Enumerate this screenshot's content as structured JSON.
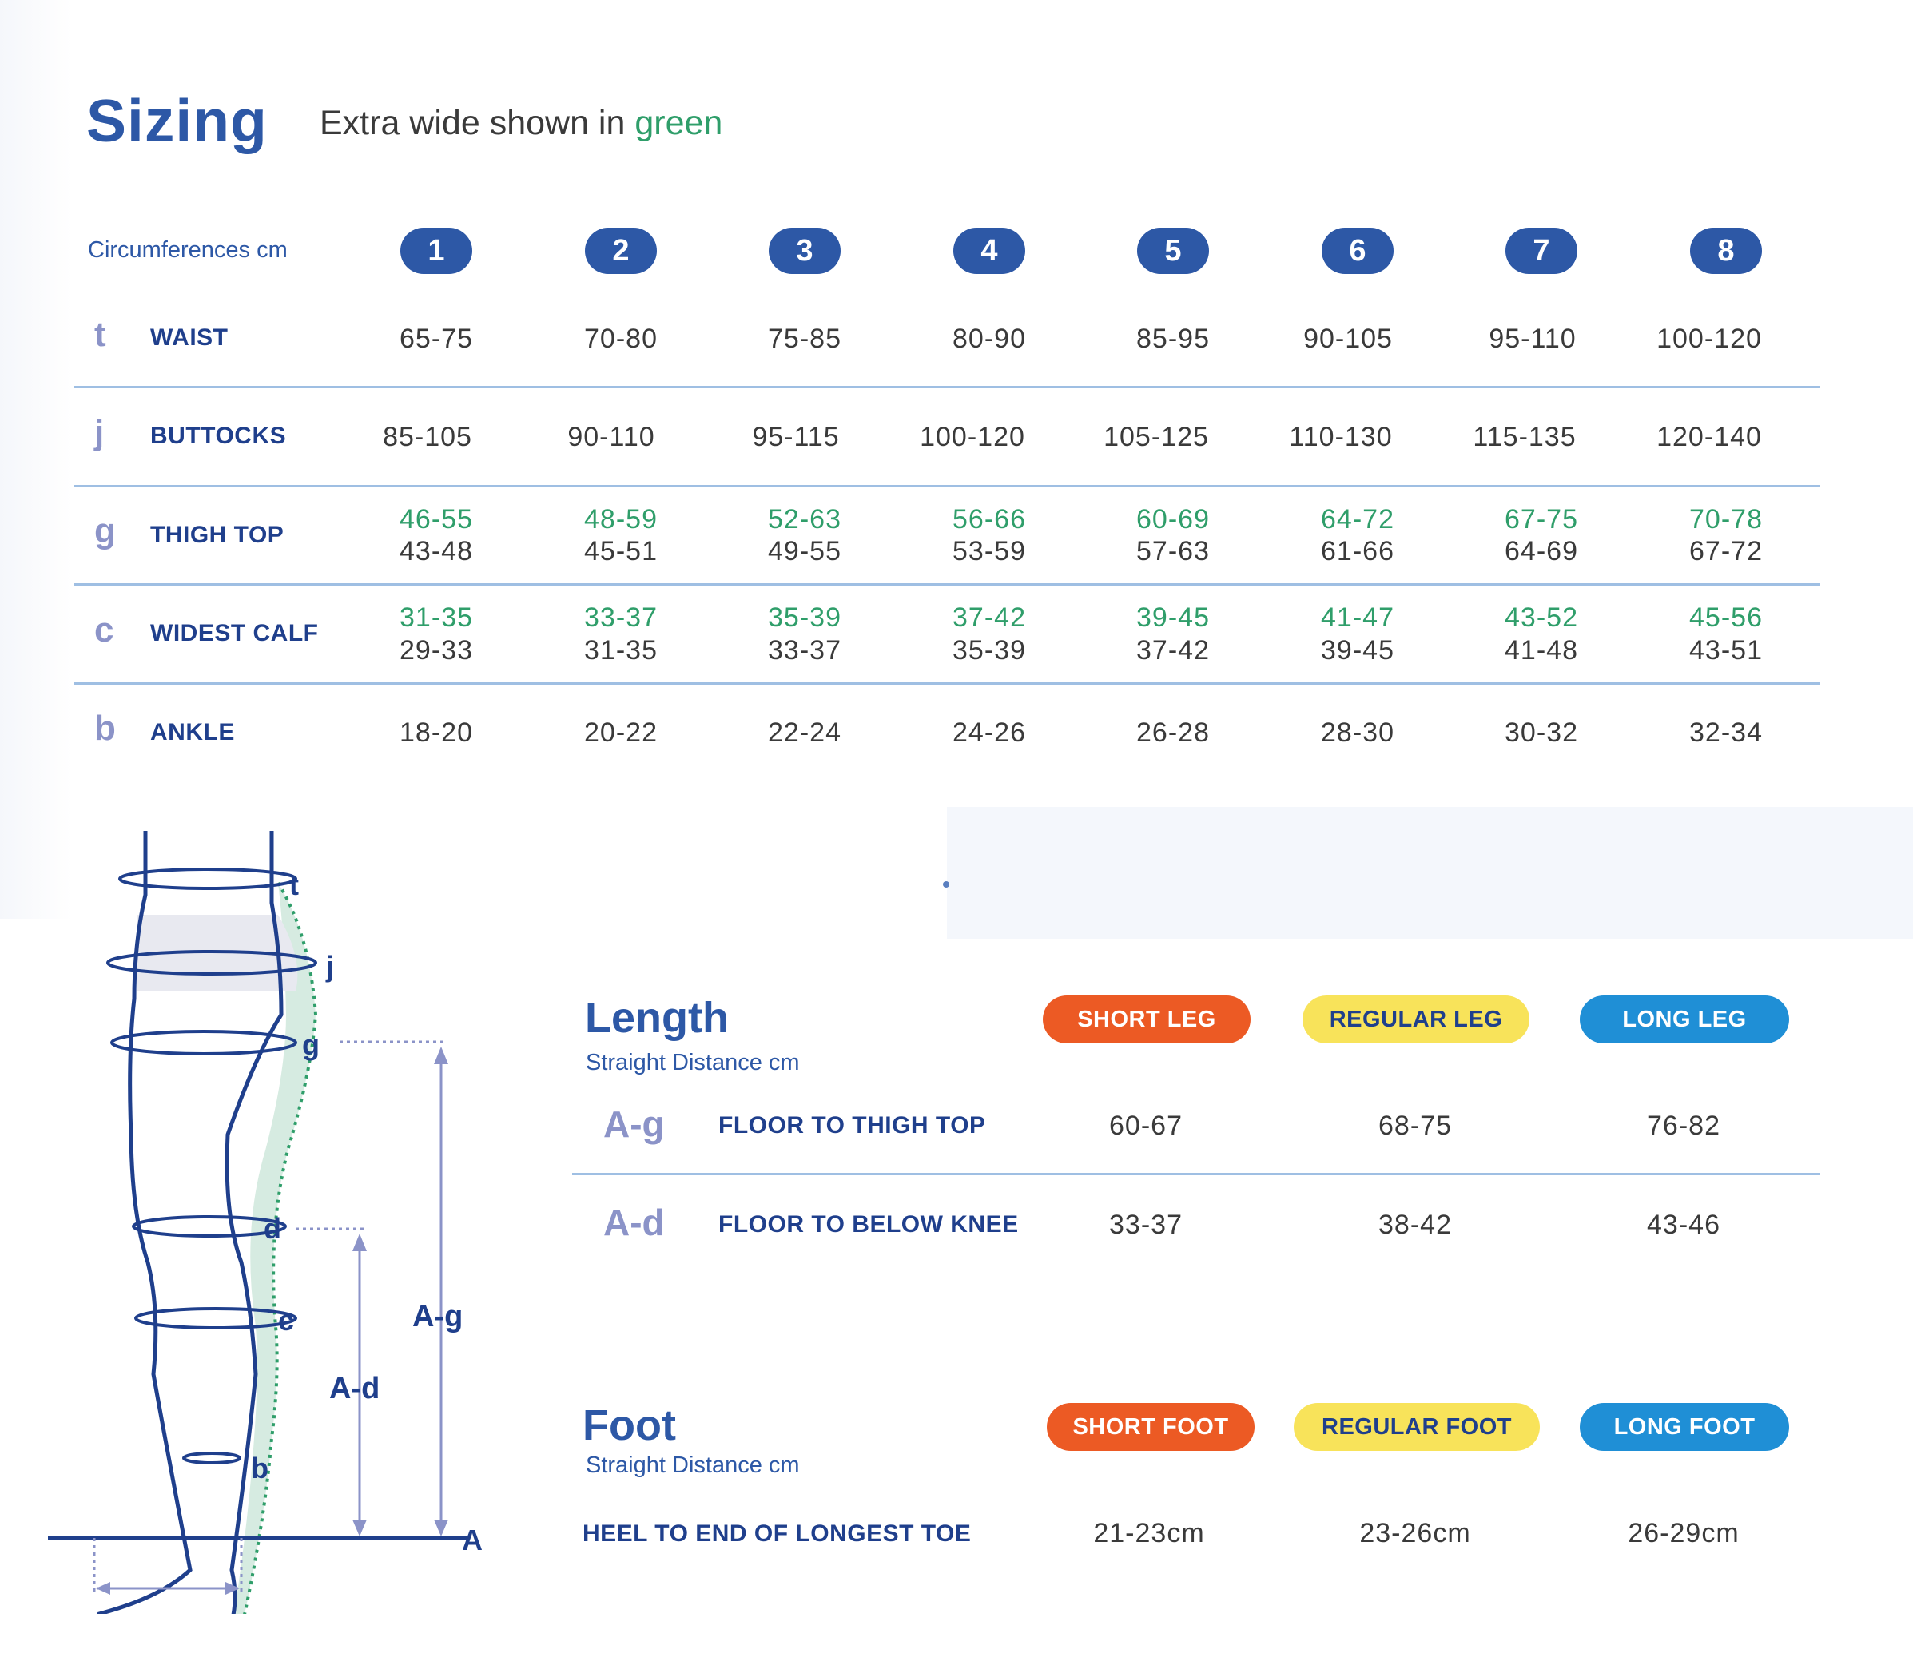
{
  "header": {
    "title": "Sizing",
    "subtitle_prefix": "Extra wide shown in ",
    "subtitle_highlight": "green"
  },
  "circumferences": {
    "label": "Circumferences cm",
    "sizes": [
      "1",
      "2",
      "3",
      "4",
      "5",
      "6",
      "7",
      "8"
    ],
    "rows": [
      {
        "letter": "t",
        "label": "WAIST",
        "values": [
          "65-75",
          "70-80",
          "75-85",
          "80-90",
          "85-95",
          "90-105",
          "95-110",
          "100-120"
        ]
      },
      {
        "letter": "j",
        "label": "BUTTOCKS",
        "values": [
          "85-105",
          "90-110",
          "95-115",
          "100-120",
          "105-125",
          "110-130",
          "115-135",
          "120-140"
        ]
      },
      {
        "letter": "g",
        "label": "THIGH TOP",
        "extra_wide": [
          "46-55",
          "48-59",
          "52-63",
          "56-66",
          "60-69",
          "64-72",
          "67-75",
          "70-78"
        ],
        "values": [
          "43-48",
          "45-51",
          "49-55",
          "53-59",
          "57-63",
          "61-66",
          "64-69",
          "67-72"
        ]
      },
      {
        "letter": "c",
        "label": "WIDEST CALF",
        "extra_wide": [
          "31-35",
          "33-37",
          "35-39",
          "37-42",
          "39-45",
          "41-47",
          "43-52",
          "45-56"
        ],
        "values": [
          "29-33",
          "31-35",
          "33-37",
          "35-39",
          "37-42",
          "39-45",
          "41-48",
          "43-51"
        ]
      },
      {
        "letter": "b",
        "label": "ANKLE",
        "values": [
          "18-20",
          "20-22",
          "22-24",
          "24-26",
          "26-28",
          "28-30",
          "30-32",
          "32-34"
        ]
      }
    ]
  },
  "length": {
    "title": "Length",
    "subtitle": "Straight Distance cm",
    "categories": [
      "SHORT LEG",
      "REGULAR LEG",
      "LONG LEG"
    ],
    "rows": [
      {
        "code": "A-g",
        "label": "FLOOR TO THIGH TOP",
        "values": [
          "60-67",
          "68-75",
          "76-82"
        ]
      },
      {
        "code": "A-d",
        "label": "FLOOR TO BELOW KNEE",
        "values": [
          "33-37",
          "38-42",
          "43-46"
        ]
      }
    ]
  },
  "foot": {
    "title": "Foot",
    "subtitle": "Straight Distance cm",
    "categories": [
      "SHORT FOOT",
      "REGULAR FOOT",
      "LONG FOOT"
    ],
    "row": {
      "label": "HEEL TO END OF LONGEST TOE",
      "values": [
        "21-23cm",
        "23-26cm",
        "26-29cm"
      ]
    }
  },
  "diagram": {
    "points": [
      "t",
      "j",
      "g",
      "d",
      "c",
      "b",
      "A"
    ],
    "measures": [
      "A-g",
      "A-d"
    ]
  },
  "colors": {
    "primary_blue": "#2d58a6",
    "extra_wide_green": "#2f9e6a",
    "short_orange": "#ec5a24",
    "regular_yellow": "#f8e35a",
    "long_blue": "#1f8fd6"
  }
}
